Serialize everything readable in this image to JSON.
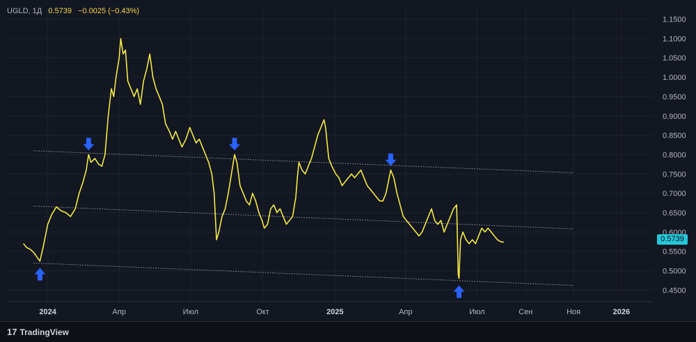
{
  "legend": {
    "symbol": "UGLD, 1Д",
    "last": "0.5739",
    "change": "−0.0025 (−0.43%)"
  },
  "price_badge": "0.5739",
  "footer": {
    "brand_mark": "17",
    "brand_name": "TradingView"
  },
  "colors": {
    "background": "#131722",
    "line": "#f6ea45",
    "grid": "#1e222d",
    "trendline": "#9598a1",
    "arrow": "#2962ff",
    "badge": "#26c6da"
  },
  "chart_data": {
    "type": "line",
    "series": [
      {
        "name": "UGLD",
        "points": [
          [
            "2023-12-01",
            0.57
          ],
          [
            "2023-12-05",
            0.56
          ],
          [
            "2023-12-10",
            0.555
          ],
          [
            "2023-12-15",
            0.545
          ],
          [
            "2023-12-20",
            0.53
          ],
          [
            "2023-12-22",
            0.525
          ],
          [
            "2023-12-26",
            0.56
          ],
          [
            "2024-01-01",
            0.62
          ],
          [
            "2024-01-06",
            0.645
          ],
          [
            "2024-01-12",
            0.665
          ],
          [
            "2024-01-18",
            0.655
          ],
          [
            "2024-01-24",
            0.65
          ],
          [
            "2024-01-30",
            0.64
          ],
          [
            "2024-02-05",
            0.66
          ],
          [
            "2024-02-10",
            0.7
          ],
          [
            "2024-02-15",
            0.73
          ],
          [
            "2024-02-19",
            0.76
          ],
          [
            "2024-02-22",
            0.8
          ],
          [
            "2024-02-25",
            0.78
          ],
          [
            "2024-03-01",
            0.79
          ],
          [
            "2024-03-06",
            0.775
          ],
          [
            "2024-03-10",
            0.77
          ],
          [
            "2024-03-14",
            0.8
          ],
          [
            "2024-03-18",
            0.9
          ],
          [
            "2024-03-22",
            0.97
          ],
          [
            "2024-03-25",
            0.95
          ],
          [
            "2024-03-28",
            1.0
          ],
          [
            "2024-04-01",
            1.05
          ],
          [
            "2024-04-03",
            1.1
          ],
          [
            "2024-04-06",
            1.06
          ],
          [
            "2024-04-09",
            1.07
          ],
          [
            "2024-04-12",
            0.99
          ],
          [
            "2024-04-16",
            0.97
          ],
          [
            "2024-04-20",
            0.95
          ],
          [
            "2024-04-24",
            0.97
          ],
          [
            "2024-04-28",
            0.93
          ],
          [
            "2024-05-02",
            0.99
          ],
          [
            "2024-05-06",
            1.02
          ],
          [
            "2024-05-10",
            1.06
          ],
          [
            "2024-05-14",
            1.0
          ],
          [
            "2024-05-18",
            0.97
          ],
          [
            "2024-05-22",
            0.95
          ],
          [
            "2024-05-26",
            0.93
          ],
          [
            "2024-05-30",
            0.88
          ],
          [
            "2024-06-04",
            0.86
          ],
          [
            "2024-06-08",
            0.84
          ],
          [
            "2024-06-12",
            0.86
          ],
          [
            "2024-06-16",
            0.84
          ],
          [
            "2024-06-20",
            0.82
          ],
          [
            "2024-06-25",
            0.84
          ],
          [
            "2024-06-30",
            0.87
          ],
          [
            "2024-07-04",
            0.85
          ],
          [
            "2024-07-08",
            0.83
          ],
          [
            "2024-07-12",
            0.84
          ],
          [
            "2024-07-16",
            0.82
          ],
          [
            "2024-07-20",
            0.8
          ],
          [
            "2024-07-24",
            0.78
          ],
          [
            "2024-07-28",
            0.75
          ],
          [
            "2024-07-31",
            0.7
          ],
          [
            "2024-08-03",
            0.58
          ],
          [
            "2024-08-06",
            0.6
          ],
          [
            "2024-08-10",
            0.64
          ],
          [
            "2024-08-14",
            0.66
          ],
          [
            "2024-08-18",
            0.7
          ],
          [
            "2024-08-22",
            0.75
          ],
          [
            "2024-08-26",
            0.8
          ],
          [
            "2024-08-29",
            0.78
          ],
          [
            "2024-09-02",
            0.72
          ],
          [
            "2024-09-06",
            0.7
          ],
          [
            "2024-09-10",
            0.68
          ],
          [
            "2024-09-14",
            0.67
          ],
          [
            "2024-09-18",
            0.7
          ],
          [
            "2024-09-22",
            0.68
          ],
          [
            "2024-09-26",
            0.65
          ],
          [
            "2024-09-30",
            0.63
          ],
          [
            "2024-10-03",
            0.61
          ],
          [
            "2024-10-07",
            0.62
          ],
          [
            "2024-10-11",
            0.66
          ],
          [
            "2024-10-15",
            0.67
          ],
          [
            "2024-10-19",
            0.65
          ],
          [
            "2024-10-23",
            0.66
          ],
          [
            "2024-10-27",
            0.64
          ],
          [
            "2024-10-31",
            0.62
          ],
          [
            "2024-11-04",
            0.63
          ],
          [
            "2024-11-08",
            0.64
          ],
          [
            "2024-11-12",
            0.69
          ],
          [
            "2024-11-14",
            0.74
          ],
          [
            "2024-11-16",
            0.78
          ],
          [
            "2024-11-20",
            0.76
          ],
          [
            "2024-11-24",
            0.75
          ],
          [
            "2024-11-28",
            0.77
          ],
          [
            "2024-12-02",
            0.79
          ],
          [
            "2024-12-06",
            0.82
          ],
          [
            "2024-12-10",
            0.85
          ],
          [
            "2024-12-14",
            0.87
          ],
          [
            "2024-12-18",
            0.89
          ],
          [
            "2024-12-20",
            0.87
          ],
          [
            "2024-12-24",
            0.79
          ],
          [
            "2024-12-28",
            0.77
          ],
          [
            "2025-01-02",
            0.75
          ],
          [
            "2025-01-06",
            0.74
          ],
          [
            "2025-01-10",
            0.72
          ],
          [
            "2025-01-14",
            0.73
          ],
          [
            "2025-01-18",
            0.74
          ],
          [
            "2025-01-22",
            0.75
          ],
          [
            "2025-01-26",
            0.74
          ],
          [
            "2025-01-30",
            0.75
          ],
          [
            "2025-02-03",
            0.76
          ],
          [
            "2025-02-07",
            0.74
          ],
          [
            "2025-02-11",
            0.72
          ],
          [
            "2025-02-15",
            0.71
          ],
          [
            "2025-02-19",
            0.7
          ],
          [
            "2025-02-23",
            0.69
          ],
          [
            "2025-02-27",
            0.68
          ],
          [
            "2025-03-03",
            0.68
          ],
          [
            "2025-03-07",
            0.7
          ],
          [
            "2025-03-10",
            0.73
          ],
          [
            "2025-03-13",
            0.76
          ],
          [
            "2025-03-17",
            0.74
          ],
          [
            "2025-03-21",
            0.7
          ],
          [
            "2025-03-25",
            0.67
          ],
          [
            "2025-03-29",
            0.64
          ],
          [
            "2025-04-02",
            0.63
          ],
          [
            "2025-04-06",
            0.62
          ],
          [
            "2025-04-10",
            0.61
          ],
          [
            "2025-04-14",
            0.6
          ],
          [
            "2025-04-18",
            0.59
          ],
          [
            "2025-04-22",
            0.6
          ],
          [
            "2025-04-26",
            0.62
          ],
          [
            "2025-04-30",
            0.64
          ],
          [
            "2025-05-04",
            0.66
          ],
          [
            "2025-05-08",
            0.63
          ],
          [
            "2025-05-12",
            0.62
          ],
          [
            "2025-05-16",
            0.63
          ],
          [
            "2025-05-20",
            0.6
          ],
          [
            "2025-05-24",
            0.62
          ],
          [
            "2025-05-28",
            0.64
          ],
          [
            "2025-06-01",
            0.66
          ],
          [
            "2025-06-05",
            0.67
          ],
          [
            "2025-06-07",
            0.49
          ],
          [
            "2025-06-08",
            0.48
          ],
          [
            "2025-06-10",
            0.58
          ],
          [
            "2025-06-13",
            0.6
          ],
          [
            "2025-06-17",
            0.58
          ],
          [
            "2025-06-21",
            0.57
          ],
          [
            "2025-06-25",
            0.58
          ],
          [
            "2025-06-29",
            0.57
          ],
          [
            "2025-07-03",
            0.59
          ],
          [
            "2025-07-07",
            0.61
          ],
          [
            "2025-07-11",
            0.6
          ],
          [
            "2025-07-15",
            0.61
          ],
          [
            "2025-07-19",
            0.6
          ],
          [
            "2025-07-23",
            0.59
          ],
          [
            "2025-07-27",
            0.58
          ],
          [
            "2025-07-31",
            0.575
          ],
          [
            "2025-08-04",
            0.5739
          ]
        ]
      }
    ],
    "trendlines": [
      {
        "from": [
          "2023-12-14",
          0.81
        ],
        "to": [
          "2025-11-01",
          0.753
        ]
      },
      {
        "from": [
          "2023-12-14",
          0.667
        ],
        "to": [
          "2025-11-01",
          0.608
        ]
      },
      {
        "from": [
          "2023-12-14",
          0.52
        ],
        "to": [
          "2025-11-01",
          0.462
        ]
      }
    ],
    "markers": [
      {
        "date": "2023-12-22",
        "value": 0.525,
        "direction": "up"
      },
      {
        "date": "2024-02-22",
        "value": 0.8,
        "direction": "down"
      },
      {
        "date": "2024-08-26",
        "value": 0.8,
        "direction": "down"
      },
      {
        "date": "2025-03-13",
        "value": 0.76,
        "direction": "down"
      },
      {
        "date": "2025-06-08",
        "value": 0.48,
        "direction": "up"
      }
    ],
    "y_ticks": [
      "1.1500",
      "1.1000",
      "1.0500",
      "1.0000",
      "0.9500",
      "0.9000",
      "0.8500",
      "0.8000",
      "0.7500",
      "0.7000",
      "0.6500",
      "0.6000",
      "0.5500",
      "0.5000",
      "0.4500"
    ],
    "x_ticks": [
      {
        "date": "2024-01-01",
        "label": "2024",
        "bold": true
      },
      {
        "date": "2024-04-01",
        "label": "Апр",
        "bold": false
      },
      {
        "date": "2024-07-01",
        "label": "Июл",
        "bold": false
      },
      {
        "date": "2024-10-01",
        "label": "Окт",
        "bold": false
      },
      {
        "date": "2025-01-01",
        "label": "2025",
        "bold": true
      },
      {
        "date": "2025-04-01",
        "label": "Апр",
        "bold": false
      },
      {
        "date": "2025-07-01",
        "label": "Июл",
        "bold": false
      },
      {
        "date": "2025-09-01",
        "label": "Сен",
        "bold": false
      },
      {
        "date": "2025-11-01",
        "label": "Ноя",
        "bold": false
      },
      {
        "date": "2026-01-01",
        "label": "2026",
        "bold": true
      }
    ],
    "xlim": [
      "2023-11-10",
      "2026-02-10"
    ],
    "ylim": [
      0.42,
      1.16
    ],
    "grid": true
  }
}
